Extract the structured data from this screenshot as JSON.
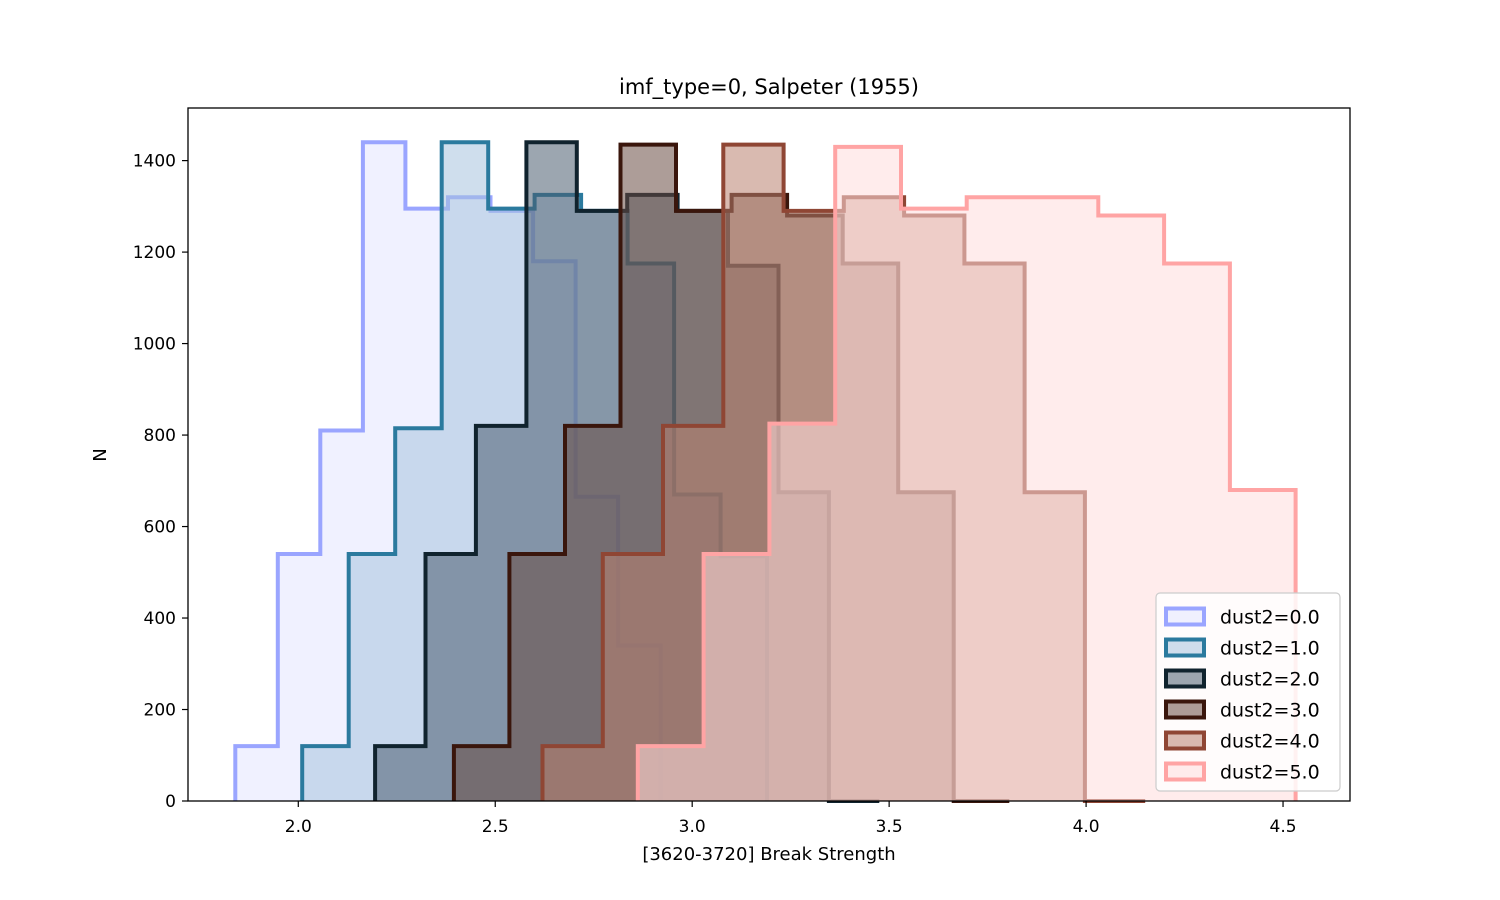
{
  "chart_data": {
    "type": "histogram",
    "title": "imf_type=0, Salpeter (1955)",
    "xlabel": "[3620-3720] Break Strength",
    "ylabel": "N",
    "xlim": [
      1.72,
      4.67
    ],
    "ylim": [
      0,
      1515
    ],
    "xticks": [
      2.0,
      2.5,
      3.0,
      3.5,
      4.0,
      4.5
    ],
    "xtick_labels": [
      "2.0",
      "2.5",
      "3.0",
      "3.5",
      "4.0",
      "4.5"
    ],
    "yticks": [
      0,
      200,
      400,
      600,
      800,
      1000,
      1200,
      1400
    ],
    "ytick_labels": [
      "0",
      "200",
      "400",
      "600",
      "800",
      "1000",
      "1200",
      "1400"
    ],
    "grid": false,
    "legend_position": "bottom-right",
    "series": [
      {
        "name": "dust2=0.0",
        "color": "#9aa5ff",
        "fill_color": "#e3e6ff",
        "bin_edges": [
          1.84,
          1.948,
          2.056,
          2.164,
          2.272,
          2.38,
          2.488,
          2.596,
          2.704,
          2.812,
          2.92
        ],
        "counts": [
          120,
          540,
          810,
          1440,
          1295,
          1320,
          1290,
          1180,
          665,
          340
        ]
      },
      {
        "name": "dust2=1.0",
        "color": "#2b7a9e",
        "fill_color": "#a7c2de",
        "bin_edges": [
          2.01,
          2.128,
          2.246,
          2.364,
          2.482,
          2.6,
          2.718,
          2.836,
          2.954,
          3.072,
          3.19
        ],
        "counts": [
          120,
          540,
          815,
          1440,
          1295,
          1325,
          1290,
          1175,
          670,
          535
        ]
      },
      {
        "name": "dust2=2.0",
        "color": "#10232e",
        "fill_color": "#4a5d70",
        "bin_edges": [
          2.195,
          2.323,
          2.451,
          2.579,
          2.707,
          2.835,
          2.963,
          3.091,
          3.219,
          3.347,
          3.475
        ],
        "counts": [
          120,
          540,
          820,
          1440,
          1290,
          1325,
          1290,
          1170,
          675,
          0
        ]
      },
      {
        "name": "dust2=3.0",
        "color": "#3a160c",
        "fill_color": "#6a4c44",
        "bin_edges": [
          2.395,
          2.536,
          2.677,
          2.818,
          2.959,
          3.1,
          3.241,
          3.382,
          3.523,
          3.664,
          3.805
        ],
        "counts": [
          120,
          540,
          820,
          1435,
          1290,
          1325,
          1280,
          1175,
          675,
          0
        ]
      },
      {
        "name": "dust2=4.0",
        "color": "#8f4634",
        "fill_color": "#b9816f",
        "bin_edges": [
          2.62,
          2.773,
          2.926,
          3.079,
          3.232,
          3.385,
          3.538,
          3.691,
          3.844,
          3.997,
          4.15
        ],
        "counts": [
          120,
          540,
          820,
          1435,
          1290,
          1320,
          1280,
          1175,
          675,
          0
        ]
      },
      {
        "name": "dust2=5.0",
        "color": "#ffa4a4",
        "fill_color": "#ffdcdc",
        "bin_edges": [
          2.862,
          3.029,
          3.196,
          3.363,
          3.53,
          3.697,
          3.864,
          4.031,
          4.198,
          4.365,
          4.532
        ],
        "counts": [
          120,
          540,
          825,
          1430,
          1295,
          1320,
          1320,
          1280,
          1175,
          680
        ]
      }
    ]
  }
}
